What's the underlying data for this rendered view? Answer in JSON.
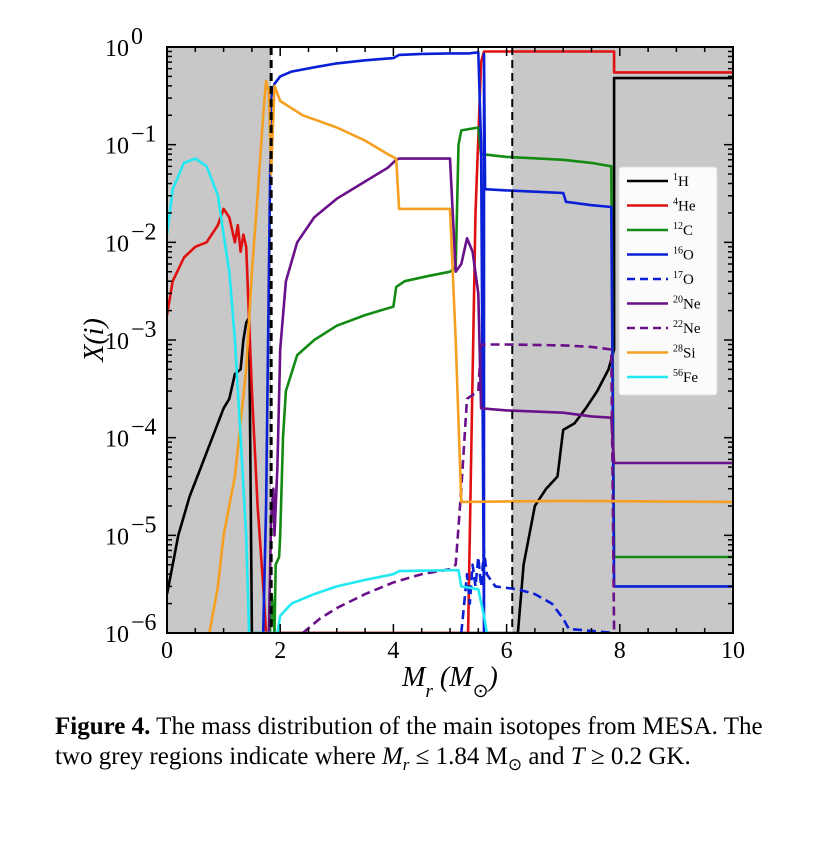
{
  "chart_data": {
    "type": "line",
    "xlabel": "M_r (M_⊙)",
    "ylabel": "X(i)",
    "xlim": [
      0,
      10
    ],
    "ylim": [
      1e-06,
      1
    ],
    "yscale": "log",
    "x_ticks": [
      "0",
      "2",
      "4",
      "6",
      "8",
      "10"
    ],
    "y_ticks": [
      {
        "base": "10",
        "exp": "0"
      },
      {
        "base": "10",
        "exp": "−1"
      },
      {
        "base": "10",
        "exp": "−2"
      },
      {
        "base": "10",
        "exp": "−3"
      },
      {
        "base": "10",
        "exp": "−4"
      },
      {
        "base": "10",
        "exp": "−5"
      },
      {
        "base": "10",
        "exp": "−6"
      }
    ],
    "shaded_regions": [
      {
        "x_range": [
          0,
          1.84
        ],
        "color": "#c8c8c8"
      },
      {
        "x_range": [
          6.1,
          10
        ],
        "color": "#c8c8c8"
      }
    ],
    "vertical_lines": [
      {
        "x": 1.84,
        "style": "dashed",
        "color": "#000000"
      },
      {
        "x": 6.1,
        "style": "dashed",
        "color": "#000000"
      }
    ],
    "legend_position": "center-right",
    "series": [
      {
        "name": "1H",
        "mass": "1",
        "element": "H",
        "color": "#000000",
        "style": "solid",
        "points": [
          [
            0,
            2.5e-06
          ],
          [
            0.1,
            5e-06
          ],
          [
            0.2,
            1e-05
          ],
          [
            0.4,
            2.5e-05
          ],
          [
            0.6,
            5e-05
          ],
          [
            0.8,
            0.0001
          ],
          [
            1.0,
            0.0002
          ],
          [
            1.1,
            0.00025
          ],
          [
            1.2,
            0.00045
          ],
          [
            1.3,
            0.0005
          ],
          [
            1.35,
            0.001
          ],
          [
            1.4,
            0.0015
          ],
          [
            1.45,
            0.0017
          ],
          [
            1.5,
            1e-06
          ],
          [
            6.2,
            1e-06
          ],
          [
            6.3,
            5e-06
          ],
          [
            6.5,
            2e-05
          ],
          [
            6.7,
            3e-05
          ],
          [
            6.9,
            4e-05
          ],
          [
            7.0,
            0.00012
          ],
          [
            7.2,
            0.00014
          ],
          [
            7.4,
            0.0002
          ],
          [
            7.6,
            0.0003
          ],
          [
            7.8,
            0.0005
          ],
          [
            7.9,
            0.0008
          ],
          [
            7.9,
            0.48
          ],
          [
            10,
            0.48
          ]
        ]
      },
      {
        "name": "4He",
        "mass": "4",
        "element": "He",
        "color": "#e01010",
        "style": "solid",
        "points": [
          [
            0,
            0.0018
          ],
          [
            0.1,
            0.004
          ],
          [
            0.3,
            0.007
          ],
          [
            0.5,
            0.009
          ],
          [
            0.7,
            0.01
          ],
          [
            0.9,
            0.015
          ],
          [
            1.0,
            0.022
          ],
          [
            1.1,
            0.018
          ],
          [
            1.2,
            0.01
          ],
          [
            1.25,
            0.015
          ],
          [
            1.3,
            0.008
          ],
          [
            1.35,
            0.012
          ],
          [
            1.4,
            0.009
          ],
          [
            1.5,
            0.0003
          ],
          [
            1.6,
            2e-05
          ],
          [
            1.7,
            3e-06
          ],
          [
            1.75,
            1e-06
          ],
          [
            5.32,
            1e-06
          ],
          [
            5.38,
            0.0001
          ],
          [
            5.45,
            0.02
          ],
          [
            5.55,
            0.7
          ],
          [
            5.6,
            0.9
          ],
          [
            7.9,
            0.9
          ],
          [
            7.9,
            0.55
          ],
          [
            10,
            0.55
          ]
        ]
      },
      {
        "name": "12C",
        "mass": "12",
        "element": "C",
        "color": "#138a13",
        "style": "solid",
        "points": [
          [
            1.82,
            1e-06
          ],
          [
            1.85,
            2.5e-06
          ],
          [
            1.9,
            1e-06
          ],
          [
            1.92,
            5e-06
          ],
          [
            1.98,
            6e-06
          ],
          [
            2.0,
            1e-05
          ],
          [
            2.05,
            0.0001
          ],
          [
            2.1,
            0.0003
          ],
          [
            2.3,
            0.0007
          ],
          [
            2.6,
            0.001
          ],
          [
            3.0,
            0.0014
          ],
          [
            3.5,
            0.0018
          ],
          [
            4.0,
            0.0022
          ],
          [
            4.05,
            0.0035
          ],
          [
            4.2,
            0.004
          ],
          [
            4.6,
            0.0045
          ],
          [
            5.0,
            0.005
          ],
          [
            5.1,
            0.0055
          ],
          [
            5.15,
            0.1
          ],
          [
            5.2,
            0.14
          ],
          [
            5.5,
            0.15
          ],
          [
            5.55,
            0.08
          ],
          [
            6.0,
            0.075
          ],
          [
            7.0,
            0.07
          ],
          [
            7.5,
            0.065
          ],
          [
            7.85,
            0.06
          ],
          [
            7.9,
            6e-06
          ],
          [
            10,
            6e-06
          ]
        ]
      },
      {
        "name": "16O",
        "mass": "16",
        "element": "O",
        "color": "#0b1fd6",
        "style": "solid",
        "points": [
          [
            1.7,
            1e-06
          ],
          [
            1.75,
            2e-05
          ],
          [
            1.8,
            0.005
          ],
          [
            1.84,
            0.3
          ],
          [
            1.9,
            0.42
          ],
          [
            2.0,
            0.5
          ],
          [
            2.2,
            0.56
          ],
          [
            2.6,
            0.62
          ],
          [
            3.0,
            0.68
          ],
          [
            3.5,
            0.73
          ],
          [
            4.0,
            0.77
          ],
          [
            4.1,
            0.83
          ],
          [
            4.5,
            0.85
          ],
          [
            5.0,
            0.86
          ],
          [
            5.35,
            0.86
          ],
          [
            5.4,
            0.87
          ],
          [
            5.5,
            0.88
          ],
          [
            5.55,
            0.1
          ],
          [
            5.6,
            1e-06
          ],
          [
            5.6,
            0.85
          ],
          [
            5.62,
            0.035
          ],
          [
            6.0,
            0.034
          ],
          [
            6.5,
            0.033
          ],
          [
            7.0,
            0.032
          ],
          [
            7.05,
            0.026
          ],
          [
            7.5,
            0.024
          ],
          [
            7.85,
            0.023
          ],
          [
            7.9,
            3e-06
          ],
          [
            10,
            3e-06
          ]
        ]
      },
      {
        "name": "17O",
        "mass": "17",
        "element": "O",
        "color": "#0b1fd6",
        "style": "dashed",
        "points": [
          [
            5.2,
            1e-06
          ],
          [
            5.25,
            2e-06
          ],
          [
            5.3,
            4e-06
          ],
          [
            5.35,
            2e-06
          ],
          [
            5.4,
            5e-06
          ],
          [
            5.45,
            3e-06
          ],
          [
            5.5,
            6e-06
          ],
          [
            5.55,
            3e-06
          ],
          [
            5.6,
            7e-06
          ],
          [
            5.65,
            4e-06
          ],
          [
            5.8,
            3e-06
          ],
          [
            6.2,
            2.8e-06
          ],
          [
            6.5,
            2.5e-06
          ],
          [
            6.8,
            2e-06
          ],
          [
            7.0,
            1.4e-06
          ],
          [
            7.1,
            1.1e-06
          ],
          [
            7.5,
            1.05e-06
          ],
          [
            7.9,
            1e-06
          ]
        ]
      },
      {
        "name": "20Ne",
        "mass": "20",
        "element": "Ne",
        "color": "#6a1089",
        "style": "solid",
        "points": [
          [
            1.8,
            1e-06
          ],
          [
            1.84,
            1.5e-05
          ],
          [
            1.88,
            3e-05
          ],
          [
            1.9,
            1e-05
          ],
          [
            1.95,
            5e-05
          ],
          [
            2.0,
            0.0008
          ],
          [
            2.1,
            0.004
          ],
          [
            2.3,
            0.01
          ],
          [
            2.6,
            0.018
          ],
          [
            3.0,
            0.028
          ],
          [
            3.5,
            0.042
          ],
          [
            3.9,
            0.058
          ],
          [
            4.05,
            0.07
          ],
          [
            4.1,
            0.072
          ],
          [
            5.0,
            0.072
          ],
          [
            5.1,
            0.005
          ],
          [
            5.2,
            0.006
          ],
          [
            5.3,
            0.011
          ],
          [
            5.4,
            0.008
          ],
          [
            5.5,
            0.003
          ],
          [
            5.55,
            0.0002
          ],
          [
            6.0,
            0.00019
          ],
          [
            7.0,
            0.00018
          ],
          [
            7.5,
            0.000165
          ],
          [
            7.85,
            0.00016
          ],
          [
            7.9,
            5.5e-05
          ],
          [
            10,
            5.5e-05
          ]
        ]
      },
      {
        "name": "22Ne",
        "mass": "22",
        "element": "Ne",
        "color": "#6a1089",
        "style": "dashed",
        "points": [
          [
            2.4,
            1e-06
          ],
          [
            2.7,
            1.4e-06
          ],
          [
            3.0,
            1.8e-06
          ],
          [
            3.5,
            2.5e-06
          ],
          [
            4.0,
            3.3e-06
          ],
          [
            4.5,
            4e-06
          ],
          [
            5.0,
            4.5e-06
          ],
          [
            5.1,
            5e-06
          ],
          [
            5.2,
            3e-05
          ],
          [
            5.3,
            0.00025
          ],
          [
            5.5,
            0.0003
          ],
          [
            5.55,
            0.0009
          ],
          [
            6.0,
            0.0009
          ],
          [
            7.0,
            0.00088
          ],
          [
            7.5,
            0.00085
          ],
          [
            7.85,
            0.0008
          ],
          [
            7.9,
            1e-06
          ]
        ]
      },
      {
        "name": "28Si",
        "mass": "28",
        "element": "Si",
        "color": "#f5a020",
        "style": "solid",
        "points": [
          [
            0.75,
            1e-06
          ],
          [
            0.9,
            3e-06
          ],
          [
            1.0,
            1e-05
          ],
          [
            1.2,
            4e-05
          ],
          [
            1.4,
            0.0005
          ],
          [
            1.5,
            0.005
          ],
          [
            1.6,
            0.03
          ],
          [
            1.7,
            0.2
          ],
          [
            1.75,
            0.45
          ],
          [
            1.8,
            0.35
          ],
          [
            1.84,
            0.05
          ],
          [
            1.9,
            0.4
          ],
          [
            2.0,
            0.28
          ],
          [
            2.4,
            0.2
          ],
          [
            3.0,
            0.15
          ],
          [
            3.5,
            0.11
          ],
          [
            3.9,
            0.08
          ],
          [
            4.05,
            0.072
          ],
          [
            4.1,
            0.022
          ],
          [
            5.0,
            0.022
          ],
          [
            5.1,
            0.001
          ],
          [
            5.2,
            2.2e-05
          ],
          [
            7.0,
            2.25e-05
          ],
          [
            10,
            2.2e-05
          ]
        ]
      },
      {
        "name": "56Fe",
        "mass": "56",
        "element": "Fe",
        "color": "#22e8f2",
        "style": "solid",
        "points": [
          [
            0,
            0.012
          ],
          [
            0.1,
            0.035
          ],
          [
            0.3,
            0.065
          ],
          [
            0.5,
            0.072
          ],
          [
            0.7,
            0.06
          ],
          [
            0.9,
            0.03
          ],
          [
            1.0,
            0.012
          ],
          [
            1.1,
            0.005
          ],
          [
            1.2,
            0.001
          ],
          [
            1.3,
            0.0001
          ],
          [
            1.4,
            1e-05
          ],
          [
            1.45,
            1e-06
          ],
          [
            1.95,
            1e-06
          ],
          [
            2.0,
            1.5e-06
          ],
          [
            2.2,
            2e-06
          ],
          [
            2.6,
            2.5e-06
          ],
          [
            3.0,
            3e-06
          ],
          [
            3.5,
            3.5e-06
          ],
          [
            4.0,
            4e-06
          ],
          [
            4.1,
            4.3e-06
          ],
          [
            5.0,
            4.4e-06
          ],
          [
            5.15,
            4.4e-06
          ],
          [
            5.2,
            3e-06
          ],
          [
            5.5,
            2.8e-06
          ],
          [
            5.6,
            1.5e-06
          ],
          [
            5.65,
            1e-06
          ]
        ]
      }
    ]
  },
  "caption": {
    "fig_label": "Figure 4.",
    "text1": " The mass distribution of the main isotopes from MESA. The two grey regions indicate where ",
    "math1": "M",
    "math1_sub": "r",
    "text2": " ≤ 1.84 M",
    "sun": "⊙",
    "text3": " and ",
    "math2": "T",
    "text4": " ≥ 0.2 GK."
  }
}
